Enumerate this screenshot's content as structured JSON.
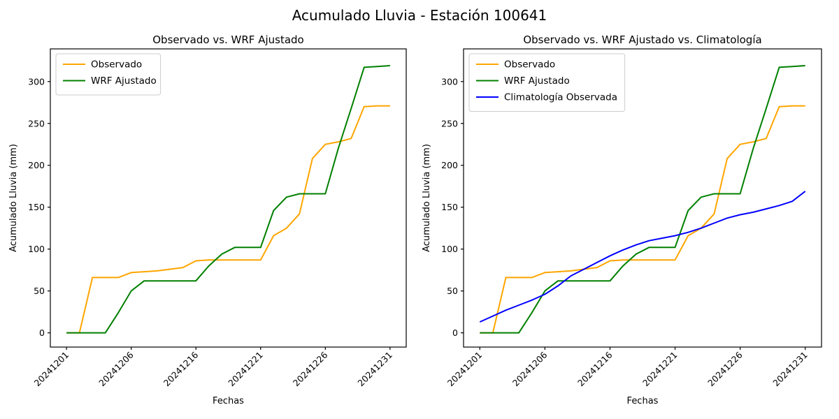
{
  "figure": {
    "title": "Acumulado Lluvia - Estación 100641",
    "background": "#ffffff"
  },
  "colors": {
    "observado": "#FFA500",
    "wrf_ajustado": "#008000",
    "climatologia": "#0000FF",
    "axis": "#000000",
    "legend_border": "#cccccc"
  },
  "chart_data": [
    {
      "type": "line",
      "title": "Observado vs. WRF Ajustado",
      "xlabel": "Fechas",
      "ylabel": "Acumulado Lluvia (mm)",
      "x_index_count": 26,
      "x_tick_indices": [
        0,
        5,
        10,
        15,
        20,
        25
      ],
      "x_tick_labels": [
        "20241201",
        "20241206",
        "20241216",
        "20241221",
        "20241226",
        "20241231"
      ],
      "y_ticks": [
        0,
        50,
        100,
        150,
        200,
        250,
        300
      ],
      "ylim": [
        -17,
        339
      ],
      "grid": false,
      "legend_position": "upper left",
      "series": [
        {
          "name": "Observado",
          "color_key": "observado",
          "values": [
            0,
            0,
            66,
            66,
            66,
            72,
            73,
            74,
            76,
            78,
            86,
            87,
            87,
            87,
            87,
            87,
            116,
            125,
            142,
            208,
            225,
            228,
            232,
            270,
            271,
            271
          ]
        },
        {
          "name": "WRF Ajustado",
          "color_key": "wrf_ajustado",
          "values": [
            0,
            0,
            0,
            0,
            24,
            50,
            62,
            62,
            62,
            62,
            62,
            80,
            94,
            102,
            102,
            102,
            146,
            162,
            166,
            166,
            166,
            220,
            268,
            317,
            318,
            319
          ]
        }
      ]
    },
    {
      "type": "line",
      "title": "Observado vs. WRF Ajustado vs. Climatología",
      "xlabel": "Fechas",
      "ylabel": "Acumulado Lluvia (mm)",
      "x_index_count": 26,
      "x_tick_indices": [
        0,
        5,
        10,
        15,
        20,
        25
      ],
      "x_tick_labels": [
        "20241201",
        "20241206",
        "20241216",
        "20241221",
        "20241226",
        "20241231"
      ],
      "y_ticks": [
        0,
        50,
        100,
        150,
        200,
        250,
        300
      ],
      "ylim": [
        -17,
        339
      ],
      "grid": false,
      "legend_position": "upper left",
      "series": [
        {
          "name": "Observado",
          "color_key": "observado",
          "values": [
            0,
            0,
            66,
            66,
            66,
            72,
            73,
            74,
            76,
            78,
            86,
            87,
            87,
            87,
            87,
            87,
            116,
            125,
            142,
            208,
            225,
            228,
            232,
            270,
            271,
            271
          ]
        },
        {
          "name": "WRF Ajustado",
          "color_key": "wrf_ajustado",
          "values": [
            0,
            0,
            0,
            0,
            24,
            50,
            62,
            62,
            62,
            62,
            62,
            80,
            94,
            102,
            102,
            102,
            146,
            162,
            166,
            166,
            166,
            220,
            268,
            317,
            318,
            319
          ]
        },
        {
          "name": "Climatología Observada",
          "color_key": "climatologia",
          "values": [
            13,
            20,
            27,
            33,
            39,
            46,
            56,
            68,
            76,
            84,
            92,
            99,
            105,
            110,
            113,
            116,
            120,
            125,
            131,
            137,
            141,
            144,
            148,
            152,
            157,
            169
          ]
        }
      ]
    }
  ]
}
